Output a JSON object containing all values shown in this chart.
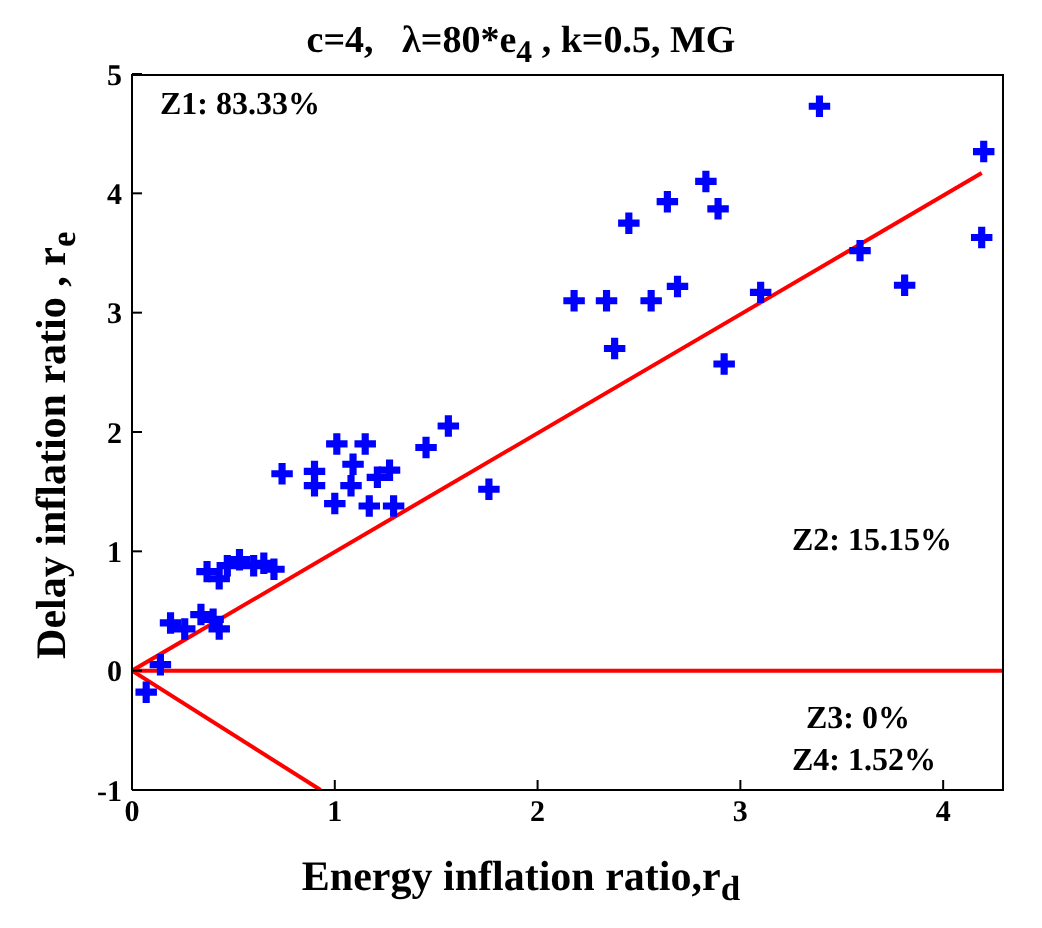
{
  "chart_data": {
    "type": "scatter",
    "title": "c=4,   λ=80*e$_{4}$ , k=0.5, MG",
    "xlabel": "Energy inflation ratio,r$_{d}$",
    "ylabel": "Delay inflation ratio , r$_{e}$",
    "annotations": [
      "Z1: 83.33%",
      "Z2: 15.15%",
      "Z3: 0%",
      "Z4: 1.52%"
    ],
    "xlim": [
      0,
      4.3
    ],
    "xticks": [
      0,
      1,
      2,
      3,
      4
    ],
    "ylim": [
      -1,
      5
    ],
    "yticks": [
      -1,
      0,
      1,
      2,
      3,
      4,
      5
    ],
    "grid": false,
    "legend": false,
    "series": [
      {
        "type": "scatter",
        "color": "#0000ff",
        "marker": "cross",
        "x": [
          3.39,
          4.2,
          2.83,
          2.64,
          2.89,
          2.45,
          3.59,
          4.19,
          2.18,
          2.34,
          2.56,
          2.69,
          3.1,
          3.81,
          2.38,
          2.92,
          1.56,
          1.45,
          1.76,
          1.01,
          1.15,
          1.09,
          0.74,
          0.9,
          0.9,
          1.08,
          1.21,
          1.27,
          1.0,
          1.17,
          1.29,
          0.37,
          0.43,
          0.53,
          0.6,
          0.65,
          0.7,
          0.47,
          0.19,
          0.26,
          0.34,
          0.43,
          0.14,
          0.07,
          0.4
        ],
        "values": [
          4.73,
          4.35,
          4.1,
          3.93,
          3.87,
          3.75,
          3.52,
          3.63,
          3.1,
          3.1,
          3.1,
          3.22,
          3.17,
          3.23,
          2.7,
          2.57,
          2.05,
          1.87,
          1.52,
          1.9,
          1.9,
          1.73,
          1.65,
          1.67,
          1.55,
          1.55,
          1.62,
          1.68,
          1.4,
          1.38,
          1.38,
          0.83,
          0.77,
          0.93,
          0.88,
          0.9,
          0.85,
          0.88,
          0.4,
          0.35,
          0.47,
          0.35,
          0.05,
          -0.18,
          0.43
        ]
      },
      {
        "type": "line",
        "color": "#ff0000",
        "x": [
          0,
          4.19
        ],
        "values": [
          0,
          4.17
        ]
      },
      {
        "type": "line",
        "color": "#ff0000",
        "x": [
          0,
          4.3
        ],
        "values": [
          0,
          0
        ]
      },
      {
        "type": "line",
        "color": "#ff0000",
        "x": [
          0,
          0.93
        ],
        "values": [
          0,
          -1
        ]
      }
    ]
  }
}
